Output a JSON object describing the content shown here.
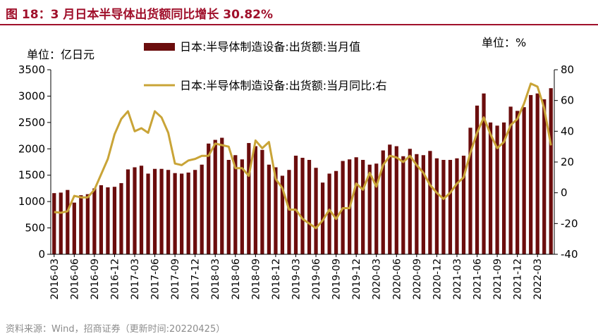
{
  "figure": {
    "title": "图 18：3 月日本半导体出货额同比增长 30.82%",
    "source": "资料来源：Wind，招商证券（更新时间:20220425）",
    "colors": {
      "bar": "#6b0d0d",
      "line": "#c9a437",
      "title": "#a0102b",
      "axis": "#000000"
    }
  },
  "chart_data": {
    "type": "bar",
    "title": "3 月日本半导体出货额同比增长 30.82%",
    "left_unit": "单位：亿日元",
    "right_unit": "单位：%",
    "x_tick_labels": [
      "2016-03",
      "2016-06",
      "2016-09",
      "2016-12",
      "2017-03",
      "2017-06",
      "2017-09",
      "2017-12",
      "2018-03",
      "2018-06",
      "2018-09",
      "2018-12",
      "2019-03",
      "2019-06",
      "2019-09",
      "2019-12",
      "2020-03",
      "2020-06",
      "2020-09",
      "2020-12",
      "2021-03",
      "2021-06",
      "2021-09",
      "2021-12",
      "2022-03"
    ],
    "y_left": {
      "min": 0,
      "max": 3500,
      "ticks": [
        0,
        500,
        1000,
        1500,
        2000,
        2500,
        3000,
        3500
      ]
    },
    "y_right": {
      "min": -40,
      "max": 80,
      "ticks": [
        -40,
        -20,
        0,
        20,
        40,
        60,
        80
      ]
    },
    "series": [
      {
        "name": "日本:半导体制造设备:出货额:当月值",
        "axis": "left",
        "type": "bar",
        "values": [
          1160,
          1170,
          1220,
          980,
          1120,
          1140,
          1250,
          1310,
          1270,
          1280,
          1350,
          1610,
          1650,
          1680,
          1530,
          1620,
          1620,
          1600,
          1540,
          1530,
          1550,
          1600,
          1700,
          2100,
          2170,
          2210,
          1790,
          1880,
          1800,
          2110,
          2050,
          1980,
          1700,
          1650,
          1490,
          1600,
          1870,
          1830,
          1790,
          1640,
          1360,
          1530,
          1580,
          1770,
          1800,
          1840,
          1790,
          1700,
          1720,
          1970,
          2080,
          2050,
          1860,
          2000,
          1900,
          1880,
          1960,
          1820,
          1790,
          1790,
          1820,
          1870,
          2400,
          2820,
          3050,
          2500,
          2440,
          2500,
          2800,
          2720,
          2790,
          3020,
          3050,
          2940,
          3150
        ]
      },
      {
        "name": "日本:半导体制造设备:出货额:当月同比:右",
        "axis": "right",
        "type": "line",
        "values": [
          -12.5,
          -13.0,
          -12.0,
          -2.0,
          -3.0,
          -3.0,
          2.0,
          12.0,
          22.0,
          38.0,
          48.0,
          53.0,
          40.0,
          42.0,
          39.0,
          53.0,
          49.0,
          39.0,
          19.0,
          18.0,
          21.0,
          22.0,
          24.0,
          24.0,
          32.0,
          31.0,
          30.0,
          16.0,
          16.0,
          11.0,
          34.0,
          29.0,
          33.0,
          9.0,
          3.0,
          -11.0,
          -11.0,
          -17.0,
          -20.0,
          -23.0,
          -18.0,
          -11.0,
          -17.0,
          -10.0,
          -10.0,
          6.0,
          2.0,
          13.0,
          4.0,
          18.0,
          24.0,
          23.0,
          20.0,
          24.0,
          18.0,
          13.0,
          5.0,
          0.0,
          -4.0,
          0.0,
          6.0,
          10.0,
          26.0,
          39.0,
          49.0,
          38.0,
          29.0,
          33.0,
          44.0,
          48.0,
          58.0,
          71.0,
          69.0,
          55.0,
          30.82
        ]
      }
    ]
  }
}
